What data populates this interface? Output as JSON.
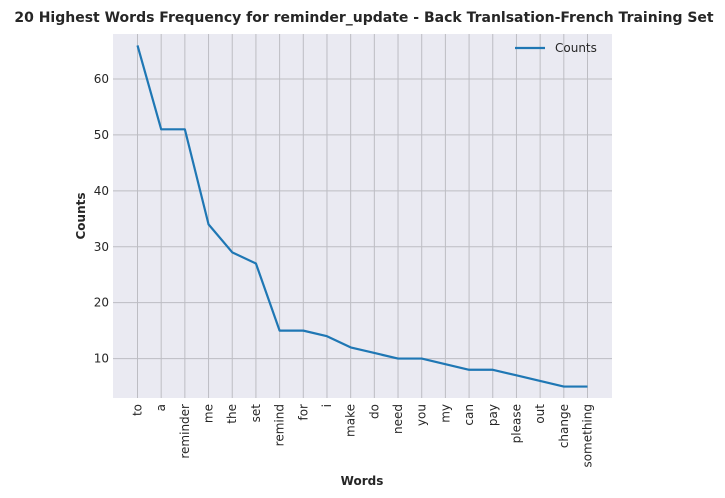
{
  "chart_data": {
    "type": "line",
    "title": "20 Highest Words Frequency for reminder_update - Back Tranlsation-French Training Set",
    "xlabel": "Words",
    "ylabel": "Counts",
    "categories": [
      "to",
      "a",
      "reminder",
      "me",
      "the",
      "set",
      "remind",
      "for",
      "i",
      "make",
      "do",
      "need",
      "you",
      "my",
      "can",
      "pay",
      "please",
      "out",
      "change",
      "something"
    ],
    "series": [
      {
        "name": "Counts",
        "values": [
          66,
          51,
          51,
          34,
          29,
          27,
          15,
          15,
          14,
          12,
          11,
          10,
          10,
          9,
          8,
          8,
          7,
          6,
          5,
          5
        ],
        "color": "#1f77b4"
      }
    ],
    "yticks": [
      10,
      20,
      30,
      40,
      50,
      60
    ],
    "ylim": [
      2.95,
      68.05
    ],
    "grid": true,
    "legend": "top-right",
    "colors": {
      "plot_bg": "#eaeaf2",
      "grid": "#bdbdc3",
      "line": "#1f77b4"
    }
  }
}
